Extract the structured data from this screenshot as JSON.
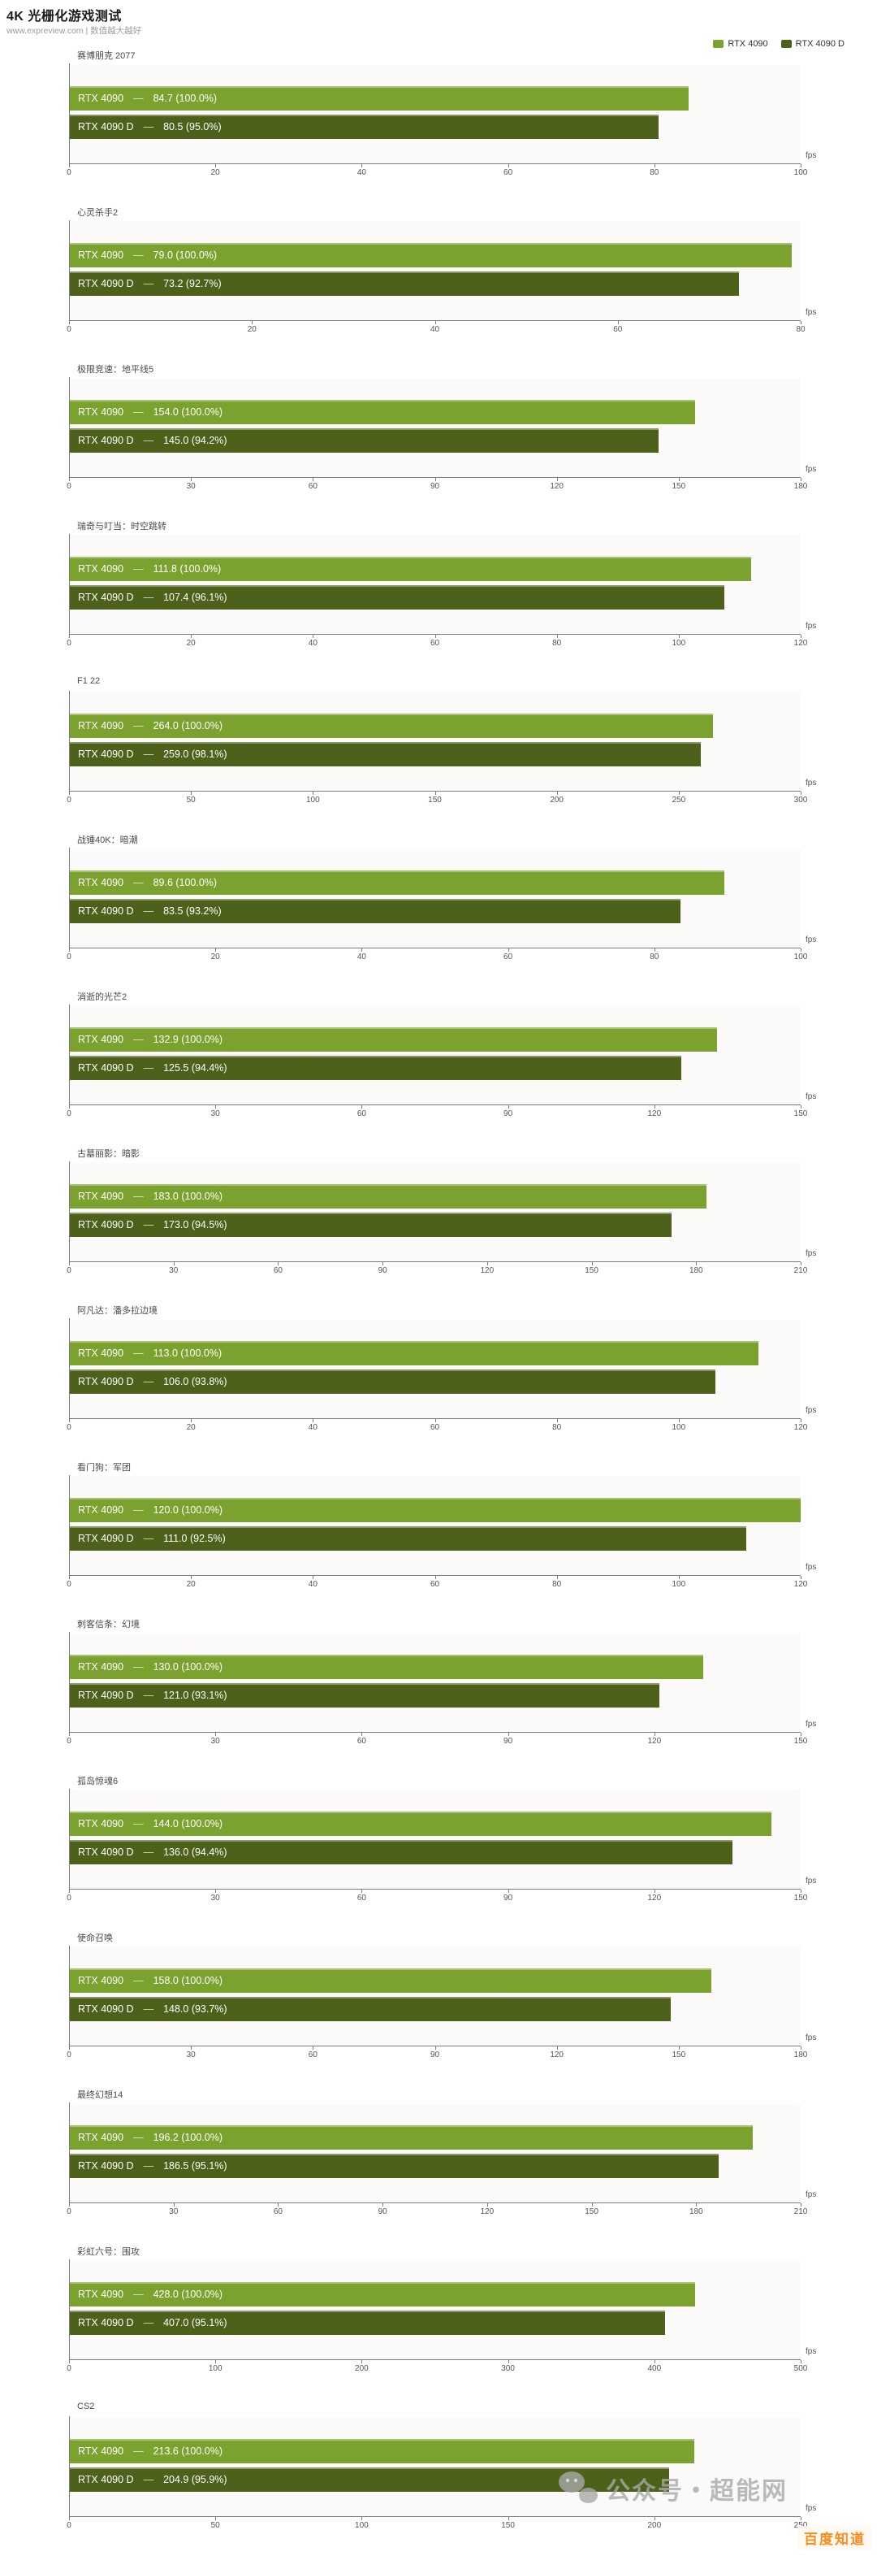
{
  "header": {
    "title": "4K 光栅化游戏测试",
    "subtitle": "www.expreview.com | 数值越大越好"
  },
  "legend": [
    {
      "label": "RTX 4090",
      "color": "#7ba22e"
    },
    {
      "label": "RTX 4090 D",
      "color": "#4d611b"
    }
  ],
  "bar_label_separator": "—",
  "axis_unit": "fps",
  "chart_data": [
    {
      "type": "bar",
      "title": "赛博朋克 2077",
      "xlabel": "fps",
      "xlim": [
        0,
        100
      ],
      "ticks": [
        0,
        20,
        40,
        60,
        80,
        100
      ],
      "series": [
        {
          "name": "RTX 4090",
          "value": 84.7,
          "label": "84.7 (100.0%)"
        },
        {
          "name": "RTX 4090 D",
          "value": 80.5,
          "label": "80.5 (95.0%)"
        }
      ]
    },
    {
      "type": "bar",
      "title": "心灵杀手2",
      "xlabel": "fps",
      "xlim": [
        0,
        80
      ],
      "ticks": [
        0,
        20,
        40,
        60,
        80
      ],
      "series": [
        {
          "name": "RTX 4090",
          "value": 79.0,
          "label": "79.0 (100.0%)"
        },
        {
          "name": "RTX 4090 D",
          "value": 73.2,
          "label": "73.2 (92.7%)"
        }
      ]
    },
    {
      "type": "bar",
      "title": "极限竞速：地平线5",
      "xlabel": "fps",
      "xlim": [
        0,
        180
      ],
      "ticks": [
        0,
        30,
        60,
        90,
        120,
        150,
        180
      ],
      "series": [
        {
          "name": "RTX 4090",
          "value": 154.0,
          "label": "154.0 (100.0%)"
        },
        {
          "name": "RTX 4090 D",
          "value": 145.0,
          "label": "145.0 (94.2%)"
        }
      ]
    },
    {
      "type": "bar",
      "title": "瑞奇与叮当：时空跳转",
      "xlabel": "fps",
      "xlim": [
        0,
        120
      ],
      "ticks": [
        0,
        20,
        40,
        60,
        80,
        100,
        120
      ],
      "series": [
        {
          "name": "RTX 4090",
          "value": 111.8,
          "label": "111.8 (100.0%)"
        },
        {
          "name": "RTX 4090 D",
          "value": 107.4,
          "label": "107.4 (96.1%)"
        }
      ]
    },
    {
      "type": "bar",
      "title": "F1 22",
      "xlabel": "fps",
      "xlim": [
        0,
        300
      ],
      "ticks": [
        0,
        50,
        100,
        150,
        200,
        250,
        300
      ],
      "series": [
        {
          "name": "RTX 4090",
          "value": 264.0,
          "label": "264.0 (100.0%)"
        },
        {
          "name": "RTX 4090 D",
          "value": 259.0,
          "label": "259.0 (98.1%)"
        }
      ]
    },
    {
      "type": "bar",
      "title": "战锤40K：暗潮",
      "xlabel": "fps",
      "xlim": [
        0,
        100
      ],
      "ticks": [
        0,
        20,
        40,
        60,
        80,
        100
      ],
      "series": [
        {
          "name": "RTX 4090",
          "value": 89.6,
          "label": "89.6 (100.0%)"
        },
        {
          "name": "RTX 4090 D",
          "value": 83.5,
          "label": "83.5 (93.2%)"
        }
      ]
    },
    {
      "type": "bar",
      "title": "消逝的光芒2",
      "xlabel": "fps",
      "xlim": [
        0,
        150
      ],
      "ticks": [
        0,
        30,
        60,
        90,
        120,
        150
      ],
      "series": [
        {
          "name": "RTX 4090",
          "value": 132.9,
          "label": "132.9 (100.0%)"
        },
        {
          "name": "RTX 4090 D",
          "value": 125.5,
          "label": "125.5 (94.4%)"
        }
      ]
    },
    {
      "type": "bar",
      "title": "古墓丽影：暗影",
      "xlabel": "fps",
      "xlim": [
        0,
        210
      ],
      "ticks": [
        0,
        30,
        60,
        90,
        120,
        150,
        180,
        210
      ],
      "series": [
        {
          "name": "RTX 4090",
          "value": 183.0,
          "label": "183.0 (100.0%)"
        },
        {
          "name": "RTX 4090 D",
          "value": 173.0,
          "label": "173.0 (94.5%)"
        }
      ]
    },
    {
      "type": "bar",
      "title": "阿凡达：潘多拉边境",
      "xlabel": "fps",
      "xlim": [
        0,
        120
      ],
      "ticks": [
        0,
        20,
        40,
        60,
        80,
        100,
        120
      ],
      "series": [
        {
          "name": "RTX 4090",
          "value": 113.0,
          "label": "113.0 (100.0%)"
        },
        {
          "name": "RTX 4090 D",
          "value": 106.0,
          "label": "106.0 (93.8%)"
        }
      ]
    },
    {
      "type": "bar",
      "title": "看门狗：军团",
      "xlabel": "fps",
      "xlim": [
        0,
        120
      ],
      "ticks": [
        0,
        20,
        40,
        60,
        80,
        100,
        120
      ],
      "series": [
        {
          "name": "RTX 4090",
          "value": 120.0,
          "label": "120.0 (100.0%)"
        },
        {
          "name": "RTX 4090 D",
          "value": 111.0,
          "label": "111.0 (92.5%)"
        }
      ]
    },
    {
      "type": "bar",
      "title": "刺客信条：幻境",
      "xlabel": "fps",
      "xlim": [
        0,
        150
      ],
      "ticks": [
        0,
        30,
        60,
        90,
        120,
        150
      ],
      "series": [
        {
          "name": "RTX 4090",
          "value": 130.0,
          "label": "130.0 (100.0%)"
        },
        {
          "name": "RTX 4090 D",
          "value": 121.0,
          "label": "121.0 (93.1%)"
        }
      ]
    },
    {
      "type": "bar",
      "title": "孤岛惊魂6",
      "xlabel": "fps",
      "xlim": [
        0,
        150
      ],
      "ticks": [
        0,
        30,
        60,
        90,
        120,
        150
      ],
      "series": [
        {
          "name": "RTX 4090",
          "value": 144.0,
          "label": "144.0 (100.0%)"
        },
        {
          "name": "RTX 4090 D",
          "value": 136.0,
          "label": "136.0 (94.4%)"
        }
      ]
    },
    {
      "type": "bar",
      "title": "使命召唤",
      "xlabel": "fps",
      "xlim": [
        0,
        180
      ],
      "ticks": [
        0,
        30,
        60,
        90,
        120,
        150,
        180
      ],
      "series": [
        {
          "name": "RTX 4090",
          "value": 158.0,
          "label": "158.0 (100.0%)"
        },
        {
          "name": "RTX 4090 D",
          "value": 148.0,
          "label": "148.0 (93.7%)"
        }
      ]
    },
    {
      "type": "bar",
      "title": "最终幻想14",
      "xlabel": "fps",
      "xlim": [
        0,
        210
      ],
      "ticks": [
        0,
        30,
        60,
        90,
        120,
        150,
        180,
        210
      ],
      "series": [
        {
          "name": "RTX 4090",
          "value": 196.2,
          "label": "196.2 (100.0%)"
        },
        {
          "name": "RTX 4090 D",
          "value": 186.5,
          "label": "186.5 (95.1%)"
        }
      ]
    },
    {
      "type": "bar",
      "title": "彩虹六号：围攻",
      "xlabel": "fps",
      "xlim": [
        0,
        500
      ],
      "ticks": [
        0,
        100,
        200,
        300,
        400,
        500
      ],
      "series": [
        {
          "name": "RTX 4090",
          "value": 428.0,
          "label": "428.0 (100.0%)"
        },
        {
          "name": "RTX 4090 D",
          "value": 407.0,
          "label": "407.0 (95.1%)"
        }
      ]
    },
    {
      "type": "bar",
      "title": "CS2",
      "xlabel": "fps",
      "xlim": [
        0,
        250
      ],
      "ticks": [
        0,
        50,
        100,
        150,
        200,
        250
      ],
      "series": [
        {
          "name": "RTX 4090",
          "value": 213.6,
          "label": "213.6 (100.0%)"
        },
        {
          "name": "RTX 4090 D",
          "value": 204.9,
          "label": "204.9 (95.9%)"
        }
      ]
    }
  ],
  "watermark": {
    "wechat": "公众号・超能网",
    "badge": "百度知道"
  }
}
